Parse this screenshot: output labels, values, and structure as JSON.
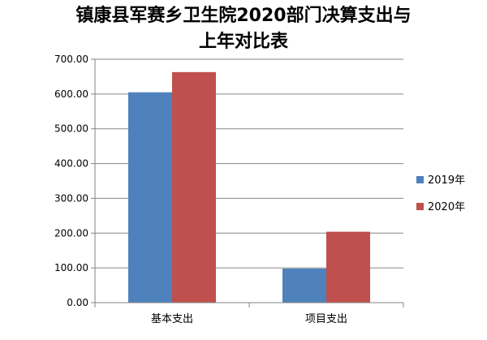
{
  "chart_data": {
    "type": "bar",
    "title_lines": [
      "镇康县军赛乡卫生院2020部门决算支出与",
      "上年对比表"
    ],
    "categories": [
      "基本支出",
      "项目支出"
    ],
    "series": [
      {
        "name": "2019年",
        "color": "#4f81bd",
        "values": [
          605,
          98
        ]
      },
      {
        "name": "2020年",
        "color": "#c0504d",
        "values": [
          663,
          204
        ]
      }
    ],
    "y_ticks": [
      "0.00",
      "100.00",
      "200.00",
      "300.00",
      "400.00",
      "500.00",
      "600.00",
      "700.00"
    ],
    "ylim": [
      0,
      700
    ],
    "grid": true,
    "legend_position": "right"
  }
}
